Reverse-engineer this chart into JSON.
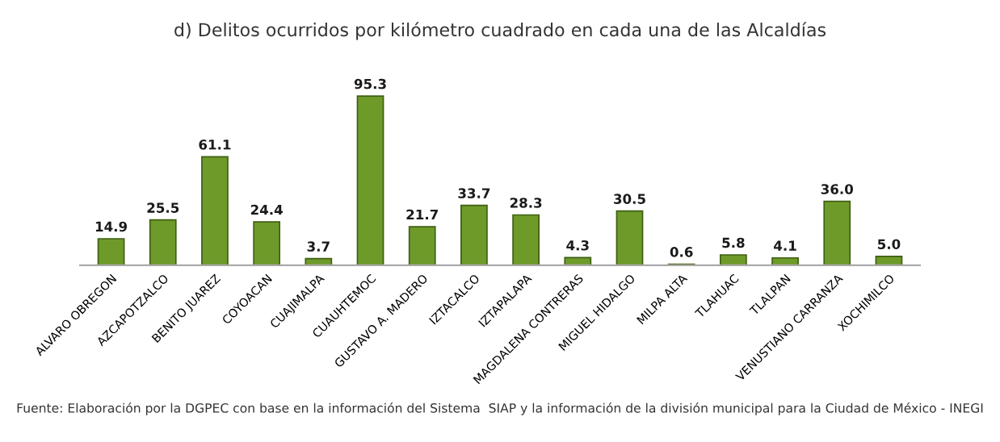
{
  "chart_data": {
    "type": "bar",
    "title": "d) Delitos ocurridos por kilómetro cuadrado en cada una de las Alcaldías",
    "categories": [
      "ALVARO OBREGON",
      "AZCAPOTZALCO",
      "BENITO JUAREZ",
      "COYOACAN",
      "CUAJIMALPA",
      "CUAUHTEMOC",
      "GUSTAVO A. MADERO",
      "IZTACALCO",
      "IZTAPALAPA",
      "MAGDALENA CONTRERAS",
      "MIGUEL HIDALGO",
      "MILPA ALTA",
      "TLAHUAC",
      "TLALPAN",
      "VENUSTIANO CARRANZA",
      "XOCHIMILCO"
    ],
    "values": [
      14.9,
      25.5,
      61.1,
      24.4,
      3.7,
      95.3,
      21.7,
      33.7,
      28.3,
      4.3,
      30.5,
      0.6,
      5.8,
      4.1,
      36.0,
      5.0
    ],
    "value_labels": [
      "14.9",
      "25.5",
      "61.1",
      "24.4",
      "3.7",
      "95.3",
      "21.7",
      "33.7",
      "28.3",
      "4.3",
      "30.5",
      "0.6",
      "5.8",
      "4.1",
      "36.0",
      "5.0"
    ],
    "color": "#6e9a2a",
    "grid": false,
    "legend": false,
    "annotations": [
      "Fuente: Elaboración por la DGPEC con base en la información del Sistema  SIAP y la información de la división municipal para la Ciudad de México - INEGI"
    ]
  }
}
